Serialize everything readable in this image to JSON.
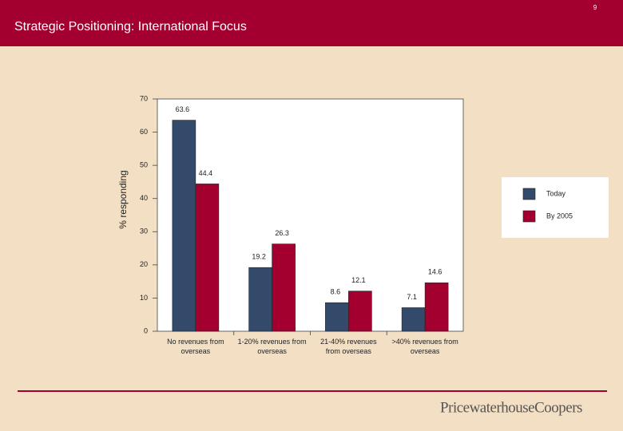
{
  "page_number": "9",
  "logo": "PricewaterhouseCoopers",
  "chart_data": {
    "type": "bar",
    "title": "Strategic Positioning: International Focus",
    "y_label": "% responding",
    "categories": [
      "No revenues from overseas",
      "1-20% revenues from overseas",
      "21-40% revenues from overseas",
      ">40% revenues from overseas"
    ],
    "series": [
      {
        "name": "Today",
        "color": "#344a6b",
        "values": [
          63.6,
          19.2,
          8.6,
          7.1
        ]
      },
      {
        "name": "By 2005",
        "color": "#a3002f",
        "values": [
          44.4,
          26.3,
          12.1,
          14.6
        ]
      }
    ],
    "ylim": [
      0,
      70
    ],
    "yticks": [
      0,
      10,
      20,
      30,
      40,
      50,
      60,
      70
    ],
    "grid": false,
    "legend": "right"
  }
}
